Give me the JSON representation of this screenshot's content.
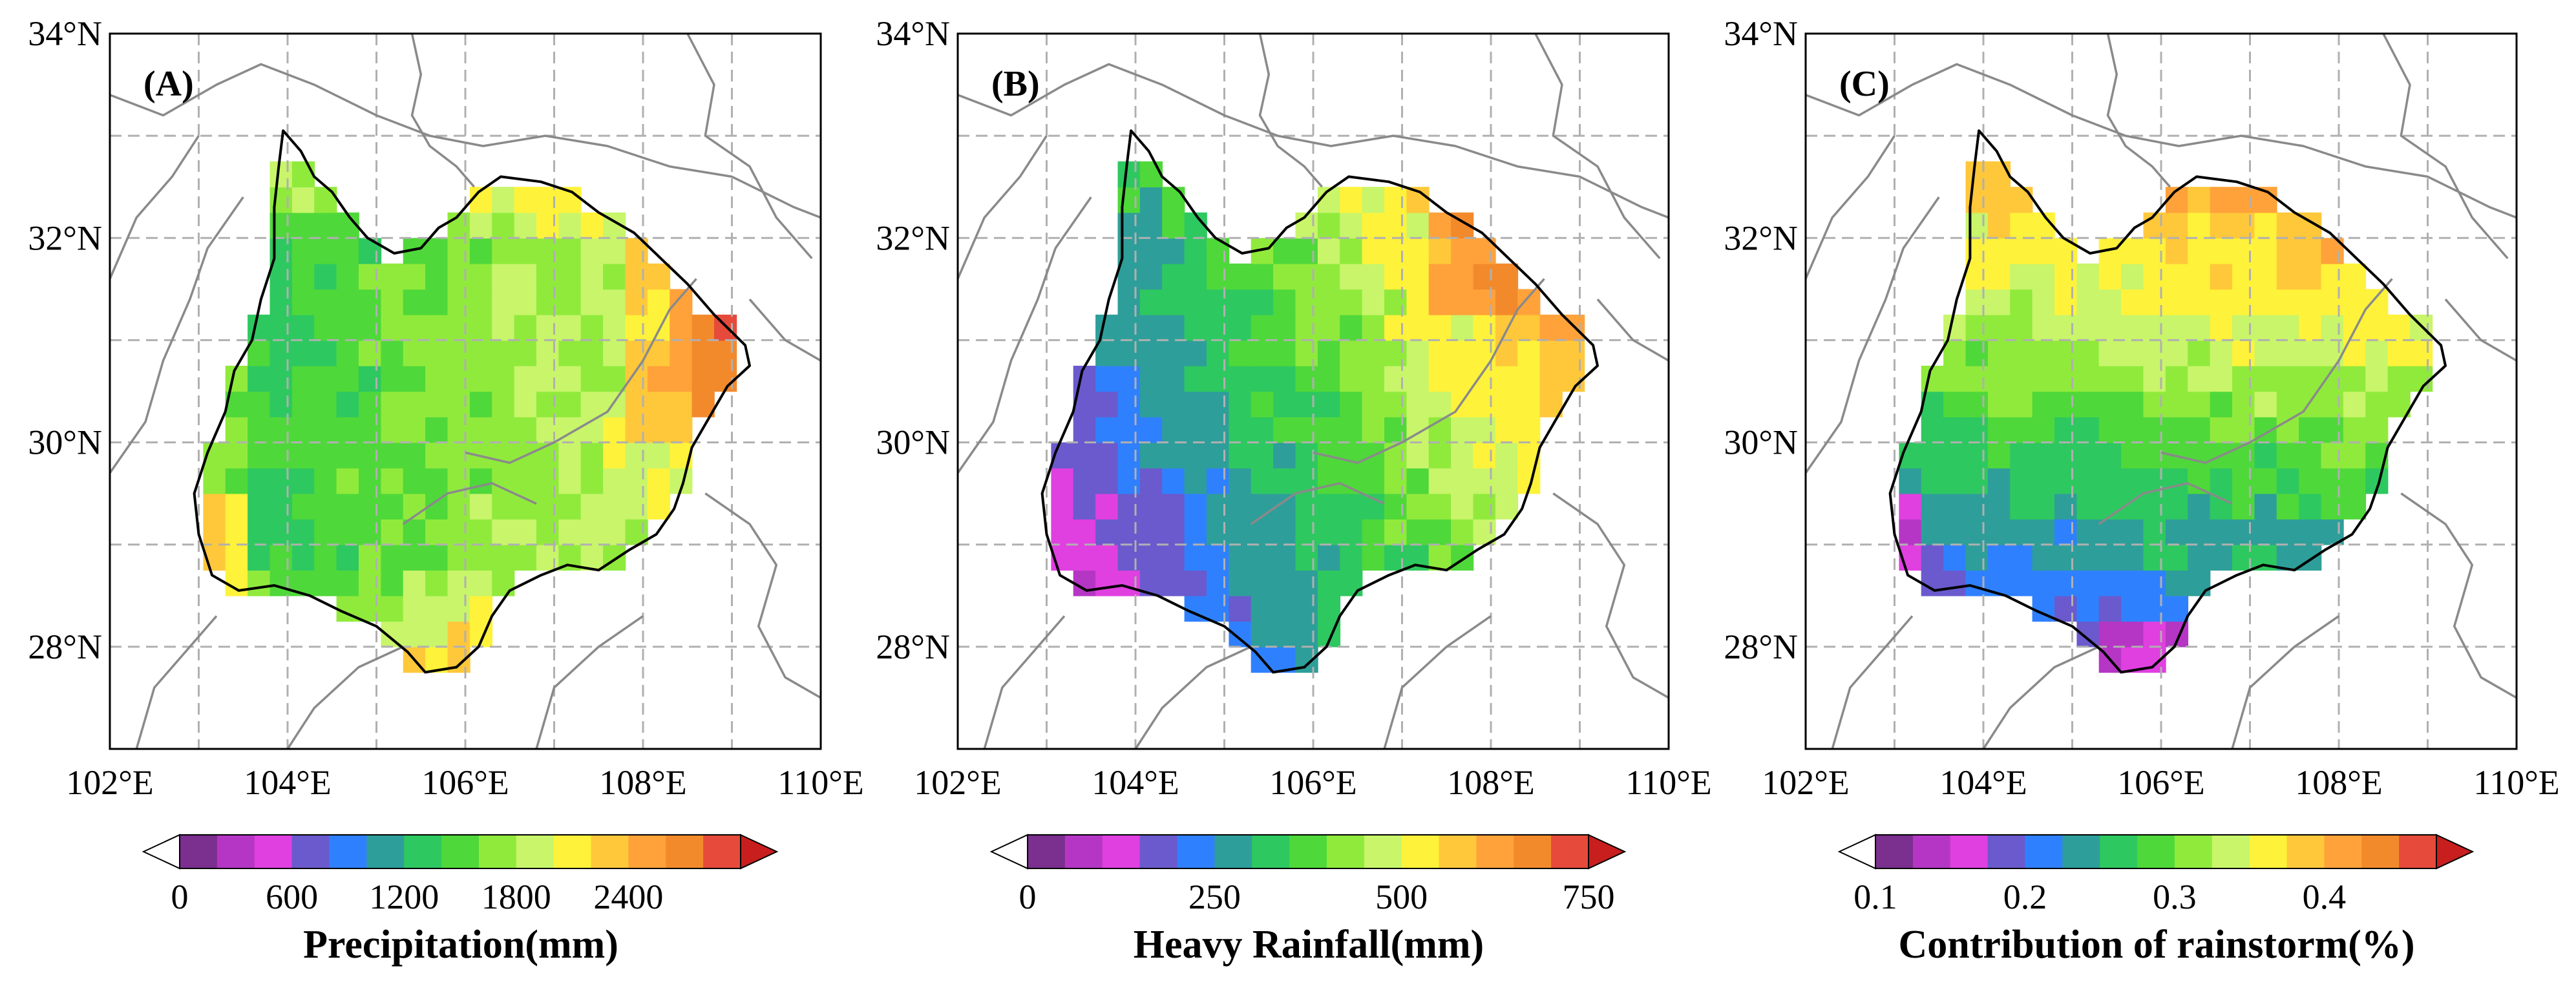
{
  "panels": [
    {
      "label": "(A)",
      "variable": "precipitation",
      "colorbar": {
        "title": "Precipitation(mm)",
        "ticks": [
          "0",
          "600",
          "1200",
          "1800",
          "2400"
        ]
      }
    },
    {
      "label": "(B)",
      "variable": "heavy_rainfall",
      "colorbar": {
        "title": "Heavy Rainfall(mm)",
        "ticks": [
          "0",
          "250",
          "500",
          "750"
        ]
      }
    },
    {
      "label": "(C)",
      "variable": "contribution",
      "colorbar": {
        "title": "Contribution of rainstorm(%)",
        "ticks": [
          "0.1",
          "0.2",
          "0.3",
          "0.4"
        ]
      }
    }
  ],
  "axes": {
    "lon_ticks": [
      "102°E",
      "104°E",
      "106°E",
      "108°E",
      "110°E"
    ],
    "lat_ticks": [
      "28°N",
      "30°N",
      "32°N",
      "34°N"
    ]
  },
  "colors": {
    "palette": [
      "#ffffff",
      "#7b2f8e",
      "#b536c4",
      "#e040e0",
      "#6a5acd",
      "#2f80ff",
      "#2e9e9a",
      "#2ec860",
      "#4fd83a",
      "#90ea3c",
      "#c8f56a",
      "#fff23a",
      "#ffc83a",
      "#ffa23a",
      "#f28a2c",
      "#e64a3a",
      "#c81e1e"
    ],
    "gridline": "#b0b0b0",
    "province_boundary": "#8a8a8a",
    "basin_boundary": "#000000"
  }
}
